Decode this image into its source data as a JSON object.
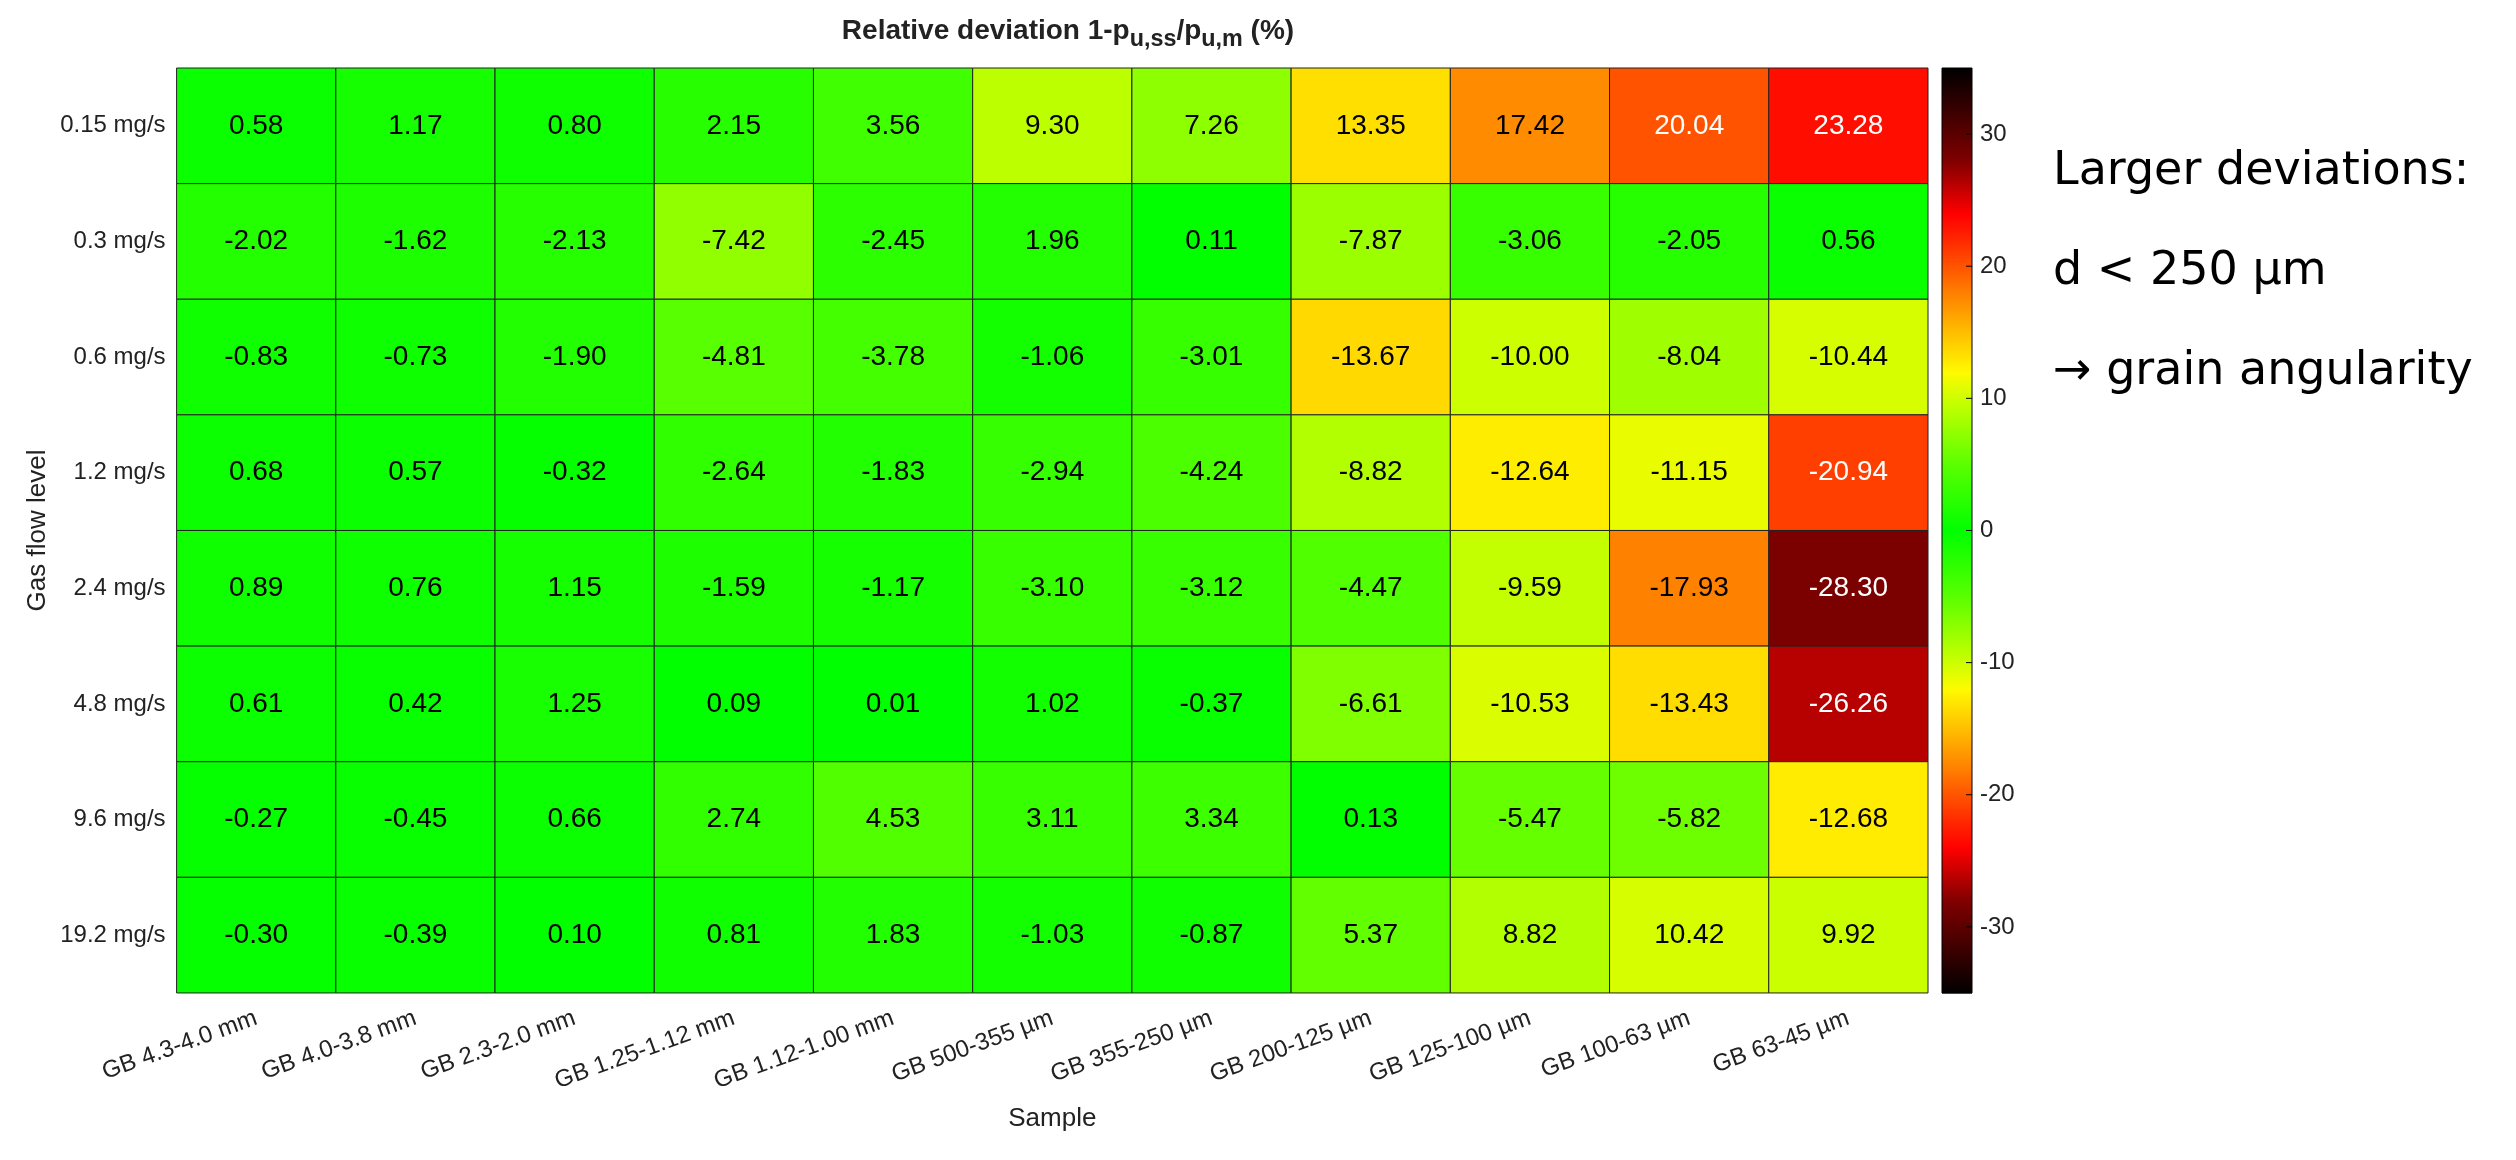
{
  "chart_data": {
    "type": "heatmap",
    "title": "Relative deviation 1-p$_{u,ss}$/p$_{u,m}$ (%)",
    "xlabel": "Sample",
    "ylabel": "Gas flow level",
    "categories": [
      "GB 4.3-4.0 mm",
      "GB 4.0-3.8 mm",
      "GB 2.3-2.0 mm",
      "GB 1.25-1.12 mm",
      "GB 1.12-1.00 mm",
      "GB 500-355 µm",
      "GB 355-250 µm",
      "GB 200-125 µm",
      "GB 125-100 µm",
      "GB 100-63 µm",
      "GB 63-45 µm"
    ],
    "y_categories": [
      "0.15 mg/s",
      "0.3 mg/s",
      "0.6 mg/s",
      "1.2 mg/s",
      "2.4 mg/s",
      "4.8 mg/s",
      "9.6 mg/s",
      "19.2 mg/s"
    ],
    "cells": [
      [
        0.58,
        1.17,
        0.8,
        2.15,
        3.56,
        9.3,
        7.26,
        13.35,
        17.42,
        20.04,
        23.28
      ],
      [
        -2.02,
        -1.62,
        -2.13,
        -7.42,
        -2.45,
        1.96,
        0.11,
        -7.87,
        -3.06,
        -2.05,
        0.56
      ],
      [
        -0.83,
        -0.73,
        -1.9,
        -4.81,
        -3.78,
        -1.06,
        -3.01,
        -13.67,
        -10.0,
        -8.04,
        -10.44
      ],
      [
        0.68,
        0.57,
        -0.32,
        -2.64,
        -1.83,
        -2.94,
        -4.24,
        -8.82,
        -12.64,
        -11.15,
        -20.94
      ],
      [
        0.89,
        0.76,
        1.15,
        -1.59,
        -1.17,
        -3.1,
        -3.12,
        -4.47,
        -9.59,
        -17.93,
        -28.3
      ],
      [
        0.61,
        0.42,
        1.25,
        0.09,
        0.01,
        1.02,
        -0.37,
        -6.61,
        -10.53,
        -13.43,
        -26.26
      ],
      [
        -0.27,
        -0.45,
        0.66,
        2.74,
        4.53,
        3.11,
        3.34,
        0.13,
        -5.47,
        -5.82,
        -12.68
      ],
      [
        -0.3,
        -0.39,
        0.1,
        0.81,
        1.83,
        -1.03,
        -0.87,
        5.37,
        8.82,
        10.42,
        9.92
      ]
    ],
    "cell_labels": [
      [
        "0.58",
        "1.17",
        "0.80",
        "2.15",
        "3.56",
        "9.30",
        "7.26",
        "13.35",
        "17.42",
        "20.04",
        "23.28"
      ],
      [
        "-2.02",
        "-1.62",
        "-2.13",
        "-7.42",
        "-2.45",
        "1.96",
        "0.11",
        "-7.87",
        "-3.06",
        "-2.05",
        "0.56"
      ],
      [
        "-0.83",
        "-0.73",
        "-1.90",
        "-4.81",
        "-3.78",
        "-1.06",
        "-3.01",
        "-13.67",
        "-10.00",
        "-8.04",
        "-10.44"
      ],
      [
        "0.68",
        "0.57",
        "-0.32",
        "-2.64",
        "-1.83",
        "-2.94",
        "-4.24",
        "-8.82",
        "-12.64",
        "-11.15",
        "-20.94"
      ],
      [
        "0.89",
        "0.76",
        "1.15",
        "-1.59",
        "-1.17",
        "-3.10",
        "-3.12",
        "-4.47",
        "-9.59",
        "-17.93",
        "-28.30"
      ],
      [
        "0.61",
        "0.42",
        "1.25",
        "0.09",
        "0.01",
        "1.02",
        "-0.37",
        "-6.61",
        "-10.53",
        "-13.43",
        "-26.26"
      ],
      [
        "-0.27",
        "-0.45",
        "0.66",
        "2.74",
        "4.53",
        "3.11",
        "3.34",
        "0.13",
        "-5.47",
        "-5.82",
        "-12.68"
      ],
      [
        "-0.30",
        "-0.39",
        "0.10",
        "0.81",
        "1.83",
        "-1.03",
        "-0.87",
        "5.37",
        "8.82",
        "10.42",
        "9.92"
      ]
    ],
    "data_labels": true,
    "clim": [
      -35,
      35
    ],
    "cticks": [
      -30,
      -20,
      -10,
      0,
      10,
      20,
      30
    ],
    "annotations": [
      "Larger deviations:",
      "d < 250 µm",
      "→ grain angularity"
    ]
  }
}
